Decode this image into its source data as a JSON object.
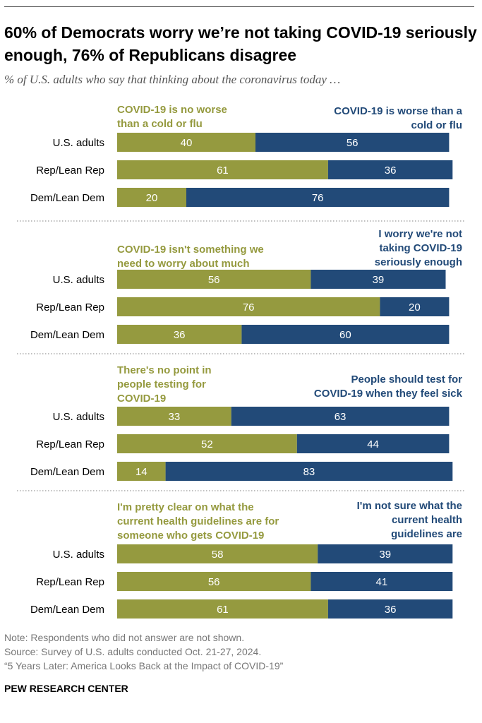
{
  "title": "60% of Democrats worry we’re not taking COVID-19 seriously enough, 76% of Republicans disagree",
  "subtitle": "% of U.S. adults who say that thinking about the coronavirus today …",
  "colors": {
    "left": "#959a3f",
    "right": "#224a78",
    "label_text": "#ffffff"
  },
  "chart_data": {
    "type": "bar",
    "orientation": "horizontal-stacked",
    "categories": [
      "U.S. adults",
      "Rep/Lean Rep",
      "Dem/Lean Dem"
    ],
    "panels": [
      {
        "left_label": [
          "COVID-19 is no worse",
          "than a cold or flu"
        ],
        "right_label": [
          "COVID-19 is worse than a",
          "cold or flu"
        ],
        "series": [
          {
            "name": "COVID-19 is no worse than a cold or flu",
            "values": [
              40,
              61,
              20
            ]
          },
          {
            "name": "COVID-19 is worse than a cold or flu",
            "values": [
              56,
              36,
              76
            ]
          }
        ]
      },
      {
        "left_label": [
          "COVID-19 isn't something we",
          "need to worry about much"
        ],
        "right_label": [
          "I worry we're not",
          "taking COVID-19",
          "seriously enough"
        ],
        "series": [
          {
            "name": "COVID-19 isn't something we need to worry about much",
            "values": [
              56,
              76,
              36
            ]
          },
          {
            "name": "I worry we're not taking COVID-19 seriously enough",
            "values": [
              39,
              20,
              60
            ]
          }
        ]
      },
      {
        "left_label": [
          "There's no point in",
          "people testing for",
          "COVID-19"
        ],
        "right_label": [
          "People should test for",
          "COVID-19 when they feel sick"
        ],
        "series": [
          {
            "name": "There's no point in people testing for COVID-19",
            "values": [
              33,
              52,
              14
            ]
          },
          {
            "name": "People should test for COVID-19 when they feel sick",
            "values": [
              63,
              44,
              83
            ]
          }
        ]
      },
      {
        "left_label": [
          "I'm pretty clear on what the",
          "current health guidelines are for",
          "someone who gets COVID-19"
        ],
        "right_label": [
          "I'm not sure what the",
          "current health",
          "guidelines are"
        ],
        "series": [
          {
            "name": "I'm pretty clear on what the current health guidelines are for someone who gets COVID-19",
            "values": [
              58,
              56,
              61
            ]
          },
          {
            "name": "I'm not sure what the current health guidelines are",
            "values": [
              39,
              41,
              36
            ]
          }
        ]
      }
    ]
  },
  "notes": [
    "Note: Respondents who did not answer are not shown.",
    "Source: Survey of U.S. adults conducted Oct. 21-27, 2024.",
    "“5 Years Later: America Looks Back at the Impact of COVID-19”"
  ],
  "source_org": "PEW RESEARCH CENTER"
}
